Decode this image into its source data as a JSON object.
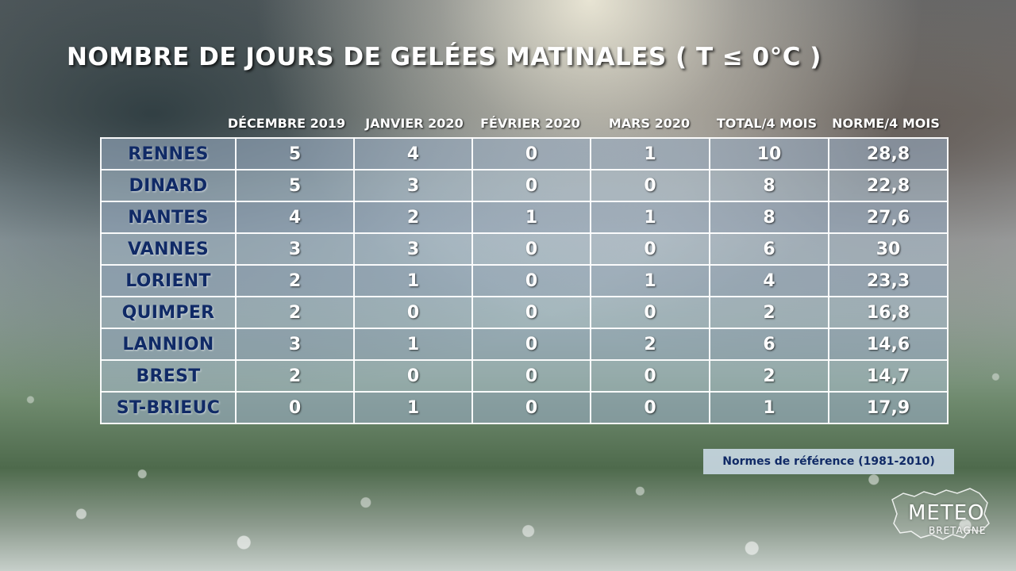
{
  "title": "NOMBRE DE JOURS DE GELÉES MATINALES ( T ≤ 0°C )",
  "columns": [
    "DÉCEMBRE 2019",
    "JANVIER 2020",
    "FÉVRIER 2020",
    "MARS 2020",
    "TOTAL/4 MOIS",
    "NORME/4 MOIS"
  ],
  "rows": [
    {
      "city": "RENNES",
      "values": [
        "5",
        "4",
        "0",
        "1",
        "10",
        "28,8"
      ]
    },
    {
      "city": "DINARD",
      "values": [
        "5",
        "3",
        "0",
        "0",
        "8",
        "22,8"
      ]
    },
    {
      "city": "NANTES",
      "values": [
        "4",
        "2",
        "1",
        "1",
        "8",
        "27,6"
      ]
    },
    {
      "city": "VANNES",
      "values": [
        "3",
        "3",
        "0",
        "0",
        "6",
        "30"
      ]
    },
    {
      "city": "LORIENT",
      "values": [
        "2",
        "1",
        "0",
        "1",
        "4",
        "23,3"
      ]
    },
    {
      "city": "QUIMPER",
      "values": [
        "2",
        "0",
        "0",
        "0",
        "2",
        "16,8"
      ]
    },
    {
      "city": "LANNION",
      "values": [
        "3",
        "1",
        "0",
        "2",
        "6",
        "14,6"
      ]
    },
    {
      "city": "BREST",
      "values": [
        "2",
        "0",
        "0",
        "0",
        "2",
        "14,7"
      ]
    },
    {
      "city": "ST-BRIEUC",
      "values": [
        "0",
        "1",
        "0",
        "0",
        "1",
        "17,9"
      ]
    }
  ],
  "note": "Normes de référence (1981-2010)",
  "logo": {
    "top": "METEO",
    "bottom": "BRETAGNE"
  },
  "colors": {
    "city_text": "#102a66",
    "value_text": "#ffffff",
    "cell_bg": "#a0b4c8",
    "grid_line": "#ffffff"
  }
}
